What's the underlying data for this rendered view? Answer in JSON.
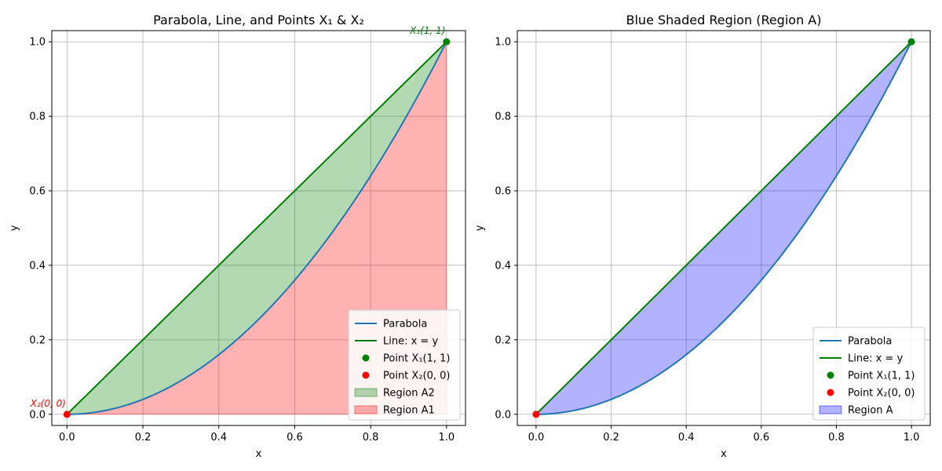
{
  "chart_data": [
    {
      "type": "line",
      "title": "Parabola, Line, and Points X₁ & X₂",
      "xlabel": "x",
      "ylabel": "y",
      "xlim": [
        -0.04,
        1.05
      ],
      "ylim": [
        -0.03,
        1.03
      ],
      "xticks": [
        "0.0",
        "0.2",
        "0.4",
        "0.6",
        "0.8",
        "1.0"
      ],
      "yticks": [
        "0.0",
        "0.2",
        "0.4",
        "0.6",
        "0.8",
        "1.0"
      ],
      "grid": true,
      "legend_position": "bottom-right",
      "series": [
        {
          "name": "Parabola",
          "kind": "line",
          "function": "y = x^2",
          "color": "#1f77b4",
          "x": [
            0,
            0.1,
            0.2,
            0.3,
            0.4,
            0.5,
            0.6,
            0.7,
            0.8,
            0.9,
            1.0
          ],
          "y": [
            0,
            0.01,
            0.04,
            0.09,
            0.16,
            0.25,
            0.36,
            0.49,
            0.64,
            0.81,
            1.0
          ]
        },
        {
          "name": "Line: x = y",
          "kind": "line",
          "function": "y = x",
          "color": "#008000",
          "x": [
            0,
            1
          ],
          "y": [
            0,
            1
          ]
        },
        {
          "name": "Point X₁(1, 1)",
          "kind": "scatter",
          "color": "#008000",
          "x": [
            1
          ],
          "y": [
            1
          ]
        },
        {
          "name": "Point X₂(0, 0)",
          "kind": "scatter",
          "color": "#ff0000",
          "x": [
            0
          ],
          "y": [
            0
          ]
        },
        {
          "name": "Region A2",
          "kind": "area",
          "between": [
            "y = x^2",
            "y = x"
          ],
          "x_range": [
            0,
            1
          ],
          "color": "#008000",
          "alpha": 0.3
        },
        {
          "name": "Region A1",
          "kind": "area",
          "between": [
            "y = 0",
            "y = x^2"
          ],
          "x_range": [
            0,
            1
          ],
          "color": "#ff0000",
          "alpha": 0.3
        }
      ],
      "annotations": [
        {
          "text": "X₁(1, 1)",
          "x": 1,
          "y": 1,
          "color": "#008000"
        },
        {
          "text": "X₂(0, 0)",
          "x": 0,
          "y": 0,
          "color": "#ff0000"
        }
      ]
    },
    {
      "type": "line",
      "title": "Blue Shaded Region (Region A)",
      "xlabel": "x",
      "ylabel": "y",
      "xlim": [
        -0.05,
        1.05
      ],
      "ylim": [
        -0.03,
        1.03
      ],
      "xticks": [
        "0.0",
        "0.2",
        "0.4",
        "0.6",
        "0.8",
        "1.0"
      ],
      "yticks": [
        "0.0",
        "0.2",
        "0.4",
        "0.6",
        "0.8",
        "1.0"
      ],
      "grid": true,
      "legend_position": "bottom-right",
      "series": [
        {
          "name": "Parabola",
          "kind": "line",
          "function": "y = x^2",
          "color": "#1f77b4",
          "x": [
            0,
            0.1,
            0.2,
            0.3,
            0.4,
            0.5,
            0.6,
            0.7,
            0.8,
            0.9,
            1.0
          ],
          "y": [
            0,
            0.01,
            0.04,
            0.09,
            0.16,
            0.25,
            0.36,
            0.49,
            0.64,
            0.81,
            1.0
          ]
        },
        {
          "name": "Line: x = y",
          "kind": "line",
          "function": "y = x",
          "color": "#008000",
          "x": [
            0,
            1
          ],
          "y": [
            0,
            1
          ]
        },
        {
          "name": "Point X₁(1, 1)",
          "kind": "scatter",
          "color": "#008000",
          "x": [
            1
          ],
          "y": [
            1
          ]
        },
        {
          "name": "Point X₂(0, 0)",
          "kind": "scatter",
          "color": "#ff0000",
          "x": [
            0
          ],
          "y": [
            0
          ]
        },
        {
          "name": "Region A",
          "kind": "area",
          "between": [
            "y = x^2",
            "y = x"
          ],
          "x_range": [
            0,
            1
          ],
          "color": "#0000ff",
          "alpha": 0.3
        }
      ],
      "annotations": []
    }
  ]
}
